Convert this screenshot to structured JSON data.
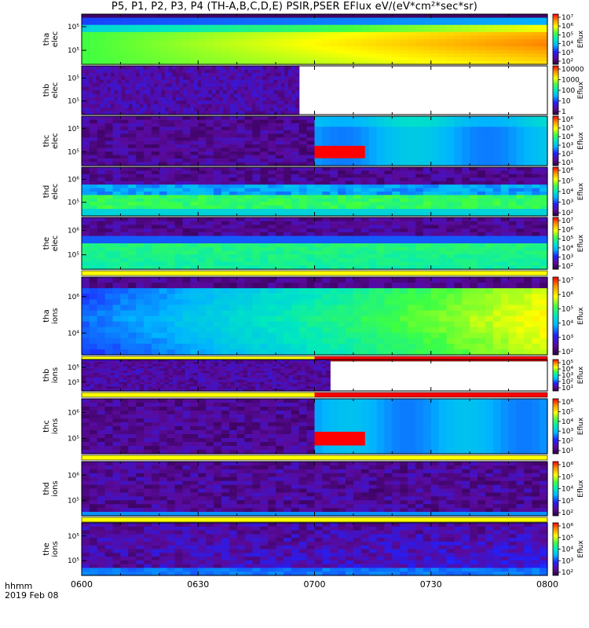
{
  "title": "P5, P1, P2, P3, P4 (TH-A,B,C,D,E) PSIR,PSER EFlux eV/(eV*cm²*sec*sr)",
  "footer": {
    "time_label": "hhmm",
    "date_label": "2019 Feb 08"
  },
  "colors": {
    "flag_yellow": "#ffff00",
    "flag_red": "#ff0000",
    "axis": "#000000"
  },
  "chart_data": {
    "type": "heatmap",
    "x_ticks": [
      "0600",
      "0630",
      "0700",
      "0730",
      "0800"
    ],
    "x_range": [
      "0600",
      "0800"
    ],
    "panels": [
      {
        "name_lines": [
          "tha",
          "elec"
        ],
        "y_ticks": [
          "10⁵",
          "10⁵"
        ],
        "scale": "log",
        "colorbar_ticks": [
          "10⁷",
          "10⁶",
          "10⁵",
          "10⁴",
          "10³",
          "10²"
        ],
        "colorbar_label": "Eflux",
        "data_end": "0800",
        "flag_after": null
      },
      {
        "name_lines": [
          "thb",
          "elec"
        ],
        "y_ticks": [
          "10⁵",
          "10⁵"
        ],
        "scale": "log",
        "colorbar_ticks": [
          "10000",
          "1000",
          "100",
          "10",
          "1"
        ],
        "colorbar_label": "Eflux",
        "data_end": "0656",
        "flag_after": null
      },
      {
        "name_lines": [
          "thc",
          "elec"
        ],
        "y_ticks": [
          "10⁵",
          "10⁵"
        ],
        "scale": "log",
        "colorbar_ticks": [
          "10⁶",
          "10⁵",
          "10⁴",
          "10³",
          "10²",
          "10¹"
        ],
        "colorbar_label": "Eflux",
        "data_end": "0800",
        "flag_after": null
      },
      {
        "name_lines": [
          "thd",
          "elec"
        ],
        "y_ticks": [
          "10⁶",
          "10⁵"
        ],
        "scale": "log",
        "colorbar_ticks": [
          "10⁶",
          "10⁵",
          "10⁴",
          "10³",
          "10²"
        ],
        "colorbar_label": "Eflux",
        "data_end": "0800",
        "flag_after": null
      },
      {
        "name_lines": [
          "the",
          "elec"
        ],
        "y_ticks": [
          "10⁶",
          "10⁵"
        ],
        "scale": "log",
        "colorbar_ticks": [
          "10⁷",
          "10⁶",
          "10⁵",
          "10⁴",
          "10³",
          "10²"
        ],
        "colorbar_label": "Eflux",
        "data_end": "0800",
        "flag_after": "yellow"
      },
      {
        "name_lines": [
          "tha",
          "ions"
        ],
        "y_ticks": [
          "10⁶",
          "10⁴"
        ],
        "scale": "log",
        "colorbar_ticks": [
          "10⁷",
          "10⁶",
          "10⁵",
          "10⁴",
          "10³",
          "10²"
        ],
        "colorbar_label": "Eflux",
        "data_end": "0800",
        "flag_after": "yellow-red"
      },
      {
        "name_lines": [
          "thb",
          "ions"
        ],
        "y_ticks": [
          "10⁵",
          "10³"
        ],
        "scale": "log",
        "colorbar_ticks": [
          "10⁵",
          "10⁴",
          "10³",
          "10²",
          "10¹"
        ],
        "colorbar_label": "Eflux",
        "data_end": "0704",
        "flag_after": "yellow-red"
      },
      {
        "name_lines": [
          "thc",
          "ions"
        ],
        "y_ticks": [
          "10⁶",
          "10⁵"
        ],
        "scale": "log",
        "colorbar_ticks": [
          "10⁶",
          "10⁵",
          "10⁴",
          "10³",
          "10²",
          "10¹"
        ],
        "colorbar_label": "Eflux",
        "data_end": "0800",
        "flag_after": "yellow"
      },
      {
        "name_lines": [
          "thd",
          "ions"
        ],
        "y_ticks": [
          "10⁶",
          "10⁵"
        ],
        "scale": "log",
        "colorbar_ticks": [
          "10⁶",
          "10⁵",
          "10⁴",
          "10³",
          "10²"
        ],
        "colorbar_label": "Eflux",
        "data_end": "0800",
        "flag_after": "yellow"
      },
      {
        "name_lines": [
          "the",
          "ions"
        ],
        "y_ticks": [
          "10⁵",
          "10⁵"
        ],
        "scale": "log",
        "colorbar_ticks": [
          "10⁶",
          "10⁵",
          "10⁴",
          "10³",
          "10²"
        ],
        "colorbar_label": "Eflux",
        "data_end": "0800",
        "flag_after": null
      }
    ]
  }
}
